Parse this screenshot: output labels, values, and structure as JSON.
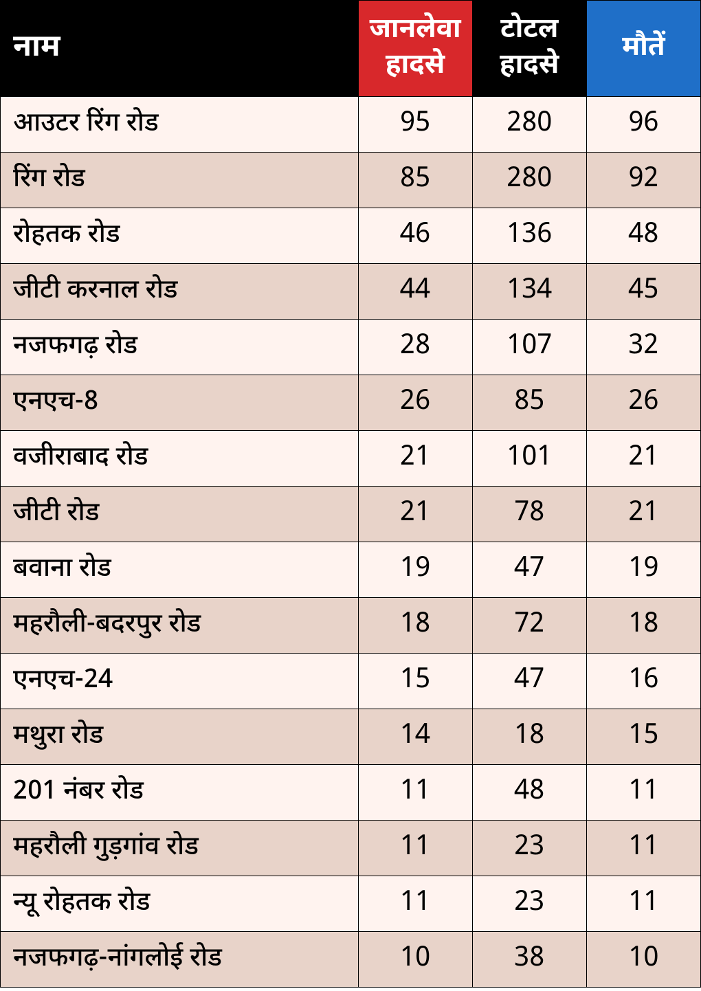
{
  "table": {
    "columns": [
      {
        "key": "name",
        "label": "नाम",
        "bg": "#000000",
        "text_align": "left"
      },
      {
        "key": "fatal",
        "label": "जानलेवा\nहादसे",
        "bg": "#d8282b",
        "text_align": "center"
      },
      {
        "key": "total",
        "label": "टोटल\nहादसे",
        "bg": "#000000",
        "text_align": "center"
      },
      {
        "key": "deaths",
        "label": "मौतें",
        "bg": "#1f6fc8",
        "text_align": "center"
      }
    ],
    "row_colors": {
      "odd": "#fff3ef",
      "even": "#e8d3c9"
    },
    "header_text_color": "#ffffff",
    "border_color": "#000000",
    "cell_text_color": "#000000",
    "fontsize_header": 40,
    "fontsize_body": 38,
    "rows": [
      {
        "name": "आउटर रिंग रोड",
        "fatal": "95",
        "total": "280",
        "deaths": "96"
      },
      {
        "name": "रिंग रोड",
        "fatal": "85",
        "total": "280",
        "deaths": "92"
      },
      {
        "name": "रोहतक रोड",
        "fatal": "46",
        "total": "136",
        "deaths": "48"
      },
      {
        "name": "जीटी करनाल रोड",
        "fatal": "44",
        "total": "134",
        "deaths": "45"
      },
      {
        "name": "नजफगढ़ रोड",
        "fatal": "28",
        "total": "107",
        "deaths": "32"
      },
      {
        "name": "एनएच-8",
        "fatal": "26",
        "total": "85",
        "deaths": "26"
      },
      {
        "name": "वजीराबाद रोड",
        "fatal": "21",
        "total": "101",
        "deaths": "21"
      },
      {
        "name": "जीटी रोड",
        "fatal": "21",
        "total": "78",
        "deaths": "21"
      },
      {
        "name": "बवाना रोड",
        "fatal": "19",
        "total": "47",
        "deaths": "19"
      },
      {
        "name": "महरौली-बदरपुर रोड",
        "fatal": "18",
        "total": "72",
        "deaths": "18"
      },
      {
        "name": "एनएच-24",
        "fatal": "15",
        "total": "47",
        "deaths": "16"
      },
      {
        "name": "मथुरा रोड",
        "fatal": "14",
        "total": "18",
        "deaths": "15"
      },
      {
        "name": "201 नंबर रोड",
        "fatal": "11",
        "total": "48",
        "deaths": "11"
      },
      {
        "name": "महरौली गुड़गांव रोड",
        "fatal": "11",
        "total": "23",
        "deaths": "11"
      },
      {
        "name": "न्यू रोहतक रोड",
        "fatal": "11",
        "total": "23",
        "deaths": "11"
      },
      {
        "name": "नजफगढ़-नांगलोई रोड",
        "fatal": "10",
        "total": "38",
        "deaths": "10"
      }
    ]
  }
}
